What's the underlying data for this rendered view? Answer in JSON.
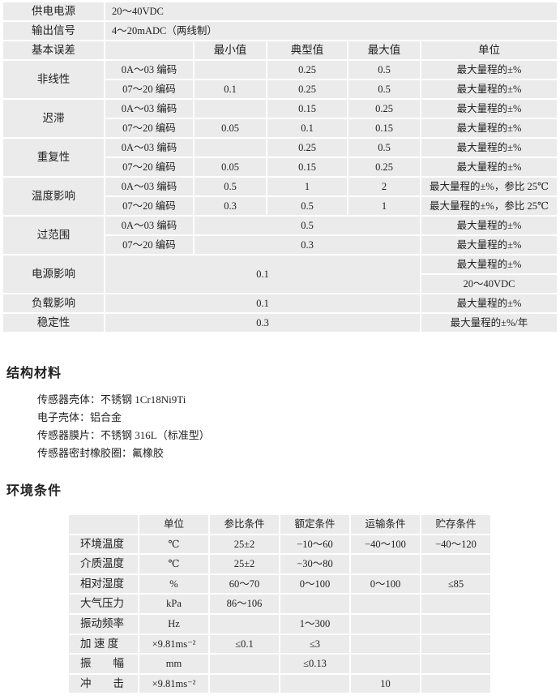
{
  "spec": {
    "power_supply": {
      "label": "供电电源",
      "value": "20～40VDC"
    },
    "output_signal": {
      "label": "输出信号",
      "value": "4～20mADC（两线制）"
    },
    "basic_error": {
      "label": "基本误差",
      "headers": [
        "最小值",
        "典型值",
        "最大值",
        "单位"
      ]
    },
    "groups": [
      {
        "name": "非线性",
        "rows": [
          {
            "code": "0A～03 编码",
            "min": "",
            "typ": "0.25",
            "max": "0.5",
            "unit": "最大量程的±%"
          },
          {
            "code": "07～20 编码",
            "min": "0.1",
            "typ": "0.25",
            "max": "0.5",
            "unit": "最大量程的±%"
          }
        ]
      },
      {
        "name": "迟滞",
        "rows": [
          {
            "code": "0A～03 编码",
            "min": "",
            "typ": "0.15",
            "max": "0.25",
            "unit": "最大量程的±%"
          },
          {
            "code": "07～20 编码",
            "min": "0.05",
            "typ": "0.1",
            "max": "0.15",
            "unit": "最大量程的±%"
          }
        ]
      },
      {
        "name": "重复性",
        "rows": [
          {
            "code": "0A～03 编码",
            "min": "",
            "typ": "0.25",
            "max": "0.5",
            "unit": "最大量程的±%"
          },
          {
            "code": "07～20 编码",
            "min": "0.05",
            "typ": "0.15",
            "max": "0.25",
            "unit": "最大量程的±%"
          }
        ]
      },
      {
        "name": "温度影响",
        "rows": [
          {
            "code": "0A～03 编码",
            "min": "0.5",
            "typ": "1",
            "max": "2",
            "unit": "最大量程的±%，参比 25℃"
          },
          {
            "code": "07～20 编码",
            "min": "0.3",
            "typ": "0.5",
            "max": "1",
            "unit": "最大量程的±%，参比 25℃"
          }
        ]
      }
    ],
    "over_range": {
      "name": "过范围",
      "rows": [
        {
          "code": "0A～03 编码",
          "value": "0.5",
          "unit": "最大量程的±%"
        },
        {
          "code": "07～20 编码",
          "value": "0.3",
          "unit": "最大量程的±%"
        }
      ]
    },
    "power_effect": {
      "name": "电源影响",
      "value": "0.1",
      "unit_line1": "最大量程的±%",
      "unit_line2": "20～40VDC"
    },
    "load_effect": {
      "name": "负载影响",
      "value": "0.1",
      "unit": "最大量程的±%"
    },
    "stability": {
      "name": "稳定性",
      "value": "0.3",
      "unit": "最大量程的±%/年"
    }
  },
  "materials": {
    "title": "结构材料",
    "items": [
      "传感器壳体：不锈钢 1Cr18Ni9Ti",
      "电子壳体：铝合金",
      "传感器膜片：不锈钢 316L（标准型）",
      "传感器密封橡胶圈：氟橡胶"
    ]
  },
  "environment": {
    "title": "环境条件",
    "headers": [
      "",
      "单位",
      "参比条件",
      "额定条件",
      "运输条件",
      "贮存条件"
    ],
    "rows": [
      {
        "name": "环境温度",
        "unit": "℃",
        "ref": "25±2",
        "rated": "−10～60",
        "transport": "−40～100",
        "storage": "−40～120"
      },
      {
        "name": "介质温度",
        "unit": "℃",
        "ref": "25±2",
        "rated": "−30～80",
        "transport": "",
        "storage": ""
      },
      {
        "name": "相对湿度",
        "unit": "%",
        "ref": "60～70",
        "rated": "0～100",
        "transport": "0～100",
        "storage": "≤85"
      },
      {
        "name": "大气压力",
        "unit": "kPa",
        "ref": "86～106",
        "rated": "",
        "transport": "",
        "storage": ""
      },
      {
        "name": "振动频率",
        "unit": "Hz",
        "ref": "",
        "rated": "1～300",
        "transport": "",
        "storage": ""
      },
      {
        "name": "加 速 度",
        "unit": "×9.81ms⁻²",
        "ref": "≤0.1",
        "rated": "≤3",
        "transport": "",
        "storage": ""
      },
      {
        "name": "振　　幅",
        "unit": "mm",
        "ref": "",
        "rated": "≤0.13",
        "transport": "",
        "storage": ""
      },
      {
        "name": "冲　　击",
        "unit": "×9.81ms⁻²",
        "ref": "",
        "rated": "",
        "transport": "10",
        "storage": ""
      }
    ]
  }
}
